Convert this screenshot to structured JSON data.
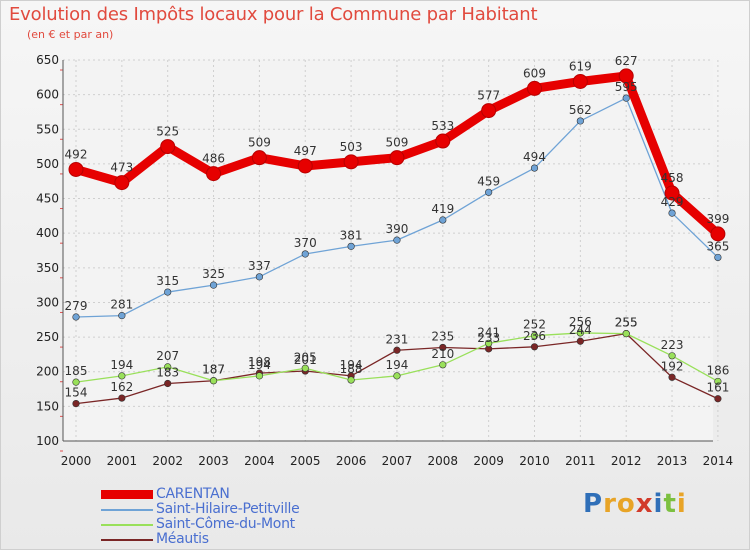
{
  "header": {
    "title": "Evolution des Impôts locaux pour la Commune par Habitant",
    "subtitle": "(en € et par an)"
  },
  "chart_data": {
    "type": "line",
    "title": "Evolution des Impôts locaux pour la Commune par Habitant",
    "subtitle": "(en € et par an)",
    "xlabel": "",
    "ylabel": "",
    "x": [
      "2000",
      "2001",
      "2002",
      "2003",
      "2004",
      "2005",
      "2006",
      "2007",
      "2008",
      "2009",
      "2010",
      "2011",
      "2012",
      "2013",
      "2014"
    ],
    "ylim": [
      100,
      650
    ],
    "yticks": [
      100,
      150,
      200,
      250,
      300,
      350,
      400,
      450,
      500,
      550,
      600,
      650
    ],
    "grid": true,
    "legend_position": "bottom-left",
    "series": [
      {
        "name": "CARENTAN",
        "color": "#e60000",
        "values": [
          492,
          473,
          525,
          486,
          509,
          497,
          503,
          509,
          533,
          577,
          609,
          619,
          627,
          458,
          399
        ]
      },
      {
        "name": "Saint-Hilaire-Petitville",
        "color": "#6fa3d6",
        "values": [
          279,
          281,
          315,
          325,
          337,
          370,
          381,
          390,
          419,
          459,
          494,
          562,
          595,
          429,
          365
        ]
      },
      {
        "name": "Saint-Côme-du-Mont",
        "color": "#99e05a",
        "values": [
          185,
          194,
          207,
          187,
          194,
          205,
          188,
          194,
          210,
          241,
          252,
          256,
          255,
          223,
          186
        ]
      },
      {
        "name": "Méautis",
        "color": "#7a2626",
        "values": [
          154,
          162,
          183,
          187,
          198,
          201,
          194,
          231,
          235,
          233,
          236,
          244,
          255,
          192,
          161
        ]
      }
    ]
  },
  "legend": {
    "items": [
      {
        "label": "CARENTAN",
        "color": "#e60000"
      },
      {
        "label": "Saint-Hilaire-Petitville",
        "color": "#6fa3d6"
      },
      {
        "label": "Saint-Côme-du-Mont",
        "color": "#99e05a"
      },
      {
        "label": "Méautis",
        "color": "#7a2626"
      }
    ]
  },
  "logo": {
    "letters": [
      "P",
      "r",
      "o",
      "x",
      "i",
      "t",
      "i"
    ],
    "colors": [
      "#2f6fb8",
      "#e8a427",
      "#e8a427",
      "#d23a2a",
      "#2f6fb8",
      "#7cc040",
      "#e8a427"
    ]
  }
}
